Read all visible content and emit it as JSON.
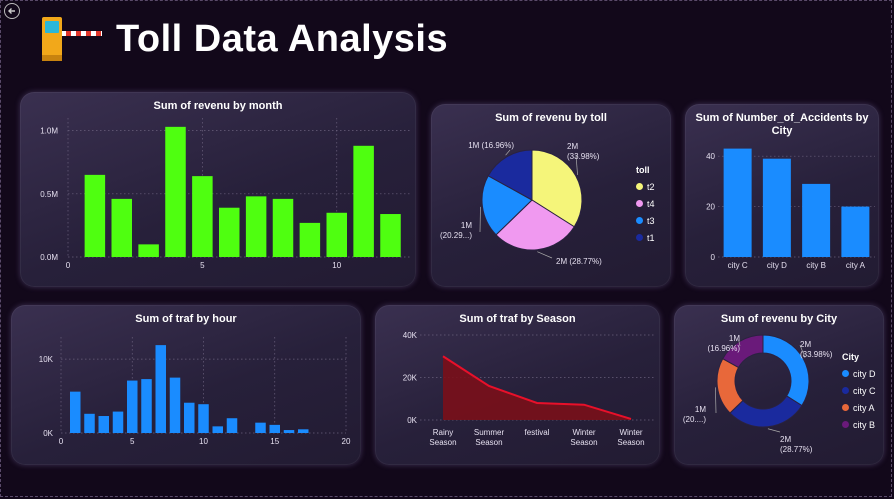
{
  "page": {
    "title": "Toll Data Analysis"
  },
  "colors": {
    "green": "#4fff10",
    "blue": "#1a8cff",
    "yellow": "#f5f57a",
    "pink": "#f099f0",
    "navy": "#1a2a9e",
    "orange": "#e8683a",
    "purple": "#6a1a7a",
    "red": "#e8102a",
    "redfill": "#7a0f1a"
  },
  "chart_data": [
    {
      "id": "month",
      "type": "bar",
      "title": "Sum of revenu by month",
      "x": [
        1,
        2,
        3,
        4,
        5,
        6,
        7,
        8,
        9,
        10,
        11,
        12
      ],
      "values": [
        0.65,
        0.46,
        0.1,
        1.03,
        0.64,
        0.39,
        0.48,
        0.46,
        0.27,
        0.35,
        0.88,
        0.34
      ],
      "xticks": [
        0,
        5,
        10
      ],
      "xtick_labels": [
        "0",
        "5",
        "10"
      ],
      "xlim": [
        0,
        12.8
      ],
      "yticks": [
        0,
        0.5,
        1.0
      ],
      "ytick_labels": [
        "0.0M",
        "0.5M",
        "1.0M"
      ],
      "ylim": [
        0,
        1.1
      ],
      "color": "#4fff10"
    },
    {
      "id": "toll",
      "type": "pie",
      "title": "Sum of revenu by toll",
      "legend_title": "toll",
      "slices": [
        {
          "name": "t2",
          "value": 33.98,
          "label": [
            "2M",
            "(33.98%)"
          ],
          "color": "#f5f57a"
        },
        {
          "name": "t4",
          "value": 28.77,
          "label": [
            "2M (28.77%)"
          ],
          "color": "#f099f0"
        },
        {
          "name": "t3",
          "value": 20.29,
          "label": [
            "1M",
            "(20.29...)"
          ],
          "color": "#1a8cff"
        },
        {
          "name": "t1",
          "value": 16.96,
          "label": [
            "1M (16.96%)"
          ],
          "color": "#1a2a9e"
        }
      ]
    },
    {
      "id": "accidents",
      "type": "bar",
      "title": [
        "Sum of Number_of_Accidents by",
        "City"
      ],
      "categories": [
        "city C",
        "city D",
        "city B",
        "city A"
      ],
      "values": [
        43,
        39,
        29,
        20
      ],
      "yticks": [
        0,
        20,
        40
      ],
      "ytick_labels": [
        "0",
        "20",
        "40"
      ],
      "ylim": [
        0,
        48
      ],
      "color": "#1a8cff"
    },
    {
      "id": "hour",
      "type": "bar",
      "title": "Sum of traf by hour",
      "x": [
        1,
        2,
        3,
        4,
        5,
        6,
        7,
        8,
        9,
        10,
        11,
        12,
        14,
        15,
        16,
        17
      ],
      "values": [
        5.6,
        2.6,
        2.3,
        2.9,
        7.1,
        7.3,
        11.9,
        7.5,
        4.1,
        3.9,
        0.9,
        2.0,
        1.4,
        1.1,
        0.4,
        0.5
      ],
      "xticks": [
        0,
        5,
        10,
        15,
        20
      ],
      "xtick_labels": [
        "0",
        "5",
        "10",
        "15",
        "20"
      ],
      "xlim": [
        0,
        20
      ],
      "yticks": [
        0,
        10
      ],
      "ytick_labels": [
        "0K",
        "10K"
      ],
      "ylim": [
        0,
        13
      ],
      "color": "#1a8cff"
    },
    {
      "id": "season",
      "type": "area",
      "title": "Sum of traf by Season",
      "categories": [
        [
          "Rainy",
          "Season"
        ],
        [
          "Summer",
          "Season"
        ],
        [
          "festival"
        ],
        [
          "Winter",
          "Season"
        ],
        [
          "Winter",
          "Season"
        ]
      ],
      "values": [
        30,
        16,
        8,
        7.2,
        0.5
      ],
      "yticks": [
        0,
        20,
        40
      ],
      "ytick_labels": [
        "0K",
        "20K",
        "40K"
      ],
      "ylim": [
        0,
        40
      ],
      "color": "#e8102a",
      "fill": "#7a0f1a"
    },
    {
      "id": "city_rev",
      "type": "pie",
      "title": "Sum of revenu by City",
      "donut": true,
      "legend_title": "City",
      "slices": [
        {
          "name": "city D",
          "value": 33.98,
          "label": [
            "2M",
            "(33.98%)"
          ],
          "color": "#1a8cff"
        },
        {
          "name": "city C",
          "value": 28.77,
          "label": [
            "2M",
            "(28.77%)"
          ],
          "color": "#1a2a9e"
        },
        {
          "name": "city A",
          "value": 20.29,
          "label": [
            "1M",
            "(20....)"
          ],
          "color": "#e8683a"
        },
        {
          "name": "city B",
          "value": 16.96,
          "label": [
            "1M",
            "(16.96%)"
          ],
          "color": "#6a1a7a"
        }
      ]
    }
  ]
}
